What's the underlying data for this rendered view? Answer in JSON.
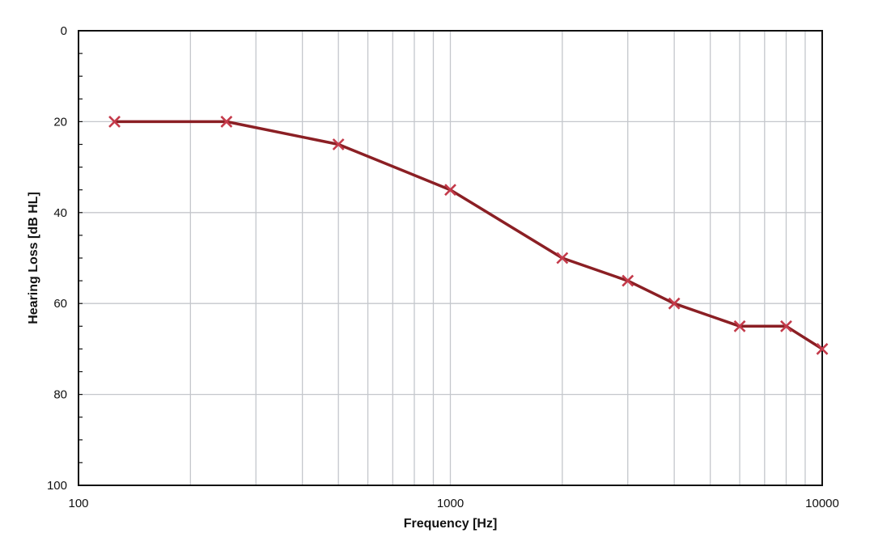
{
  "chart_data": {
    "type": "line",
    "title": "",
    "xlabel": "Frequency [Hz]",
    "ylabel": "Hearing Loss [dB HL]",
    "x_scale": "log",
    "xlim": [
      100,
      10000
    ],
    "ylim": [
      0,
      100
    ],
    "y_inverted": true,
    "grid": true,
    "legend": "none",
    "x_ticks": [
      {
        "value": 100,
        "label": "100"
      },
      {
        "value": 1000,
        "label": "1000"
      },
      {
        "value": 10000,
        "label": "10000"
      }
    ],
    "y_ticks": [
      {
        "value": 0,
        "label": "0"
      },
      {
        "value": 20,
        "label": "20"
      },
      {
        "value": 40,
        "label": "40"
      },
      {
        "value": 60,
        "label": "60"
      },
      {
        "value": 80,
        "label": "80"
      },
      {
        "value": 100,
        "label": "100"
      }
    ],
    "series": [
      {
        "color": "#8b1f24",
        "marker": "x",
        "marker_color": "#c43a4a",
        "x": [
          125,
          250,
          500,
          1000,
          2000,
          3000,
          4000,
          6000,
          8000,
          10000
        ],
        "y": [
          20,
          20,
          25,
          35,
          50,
          55,
          60,
          65,
          65,
          70
        ]
      }
    ],
    "colors": {
      "grid": "#c4c7cc",
      "axis": "#111111"
    }
  }
}
